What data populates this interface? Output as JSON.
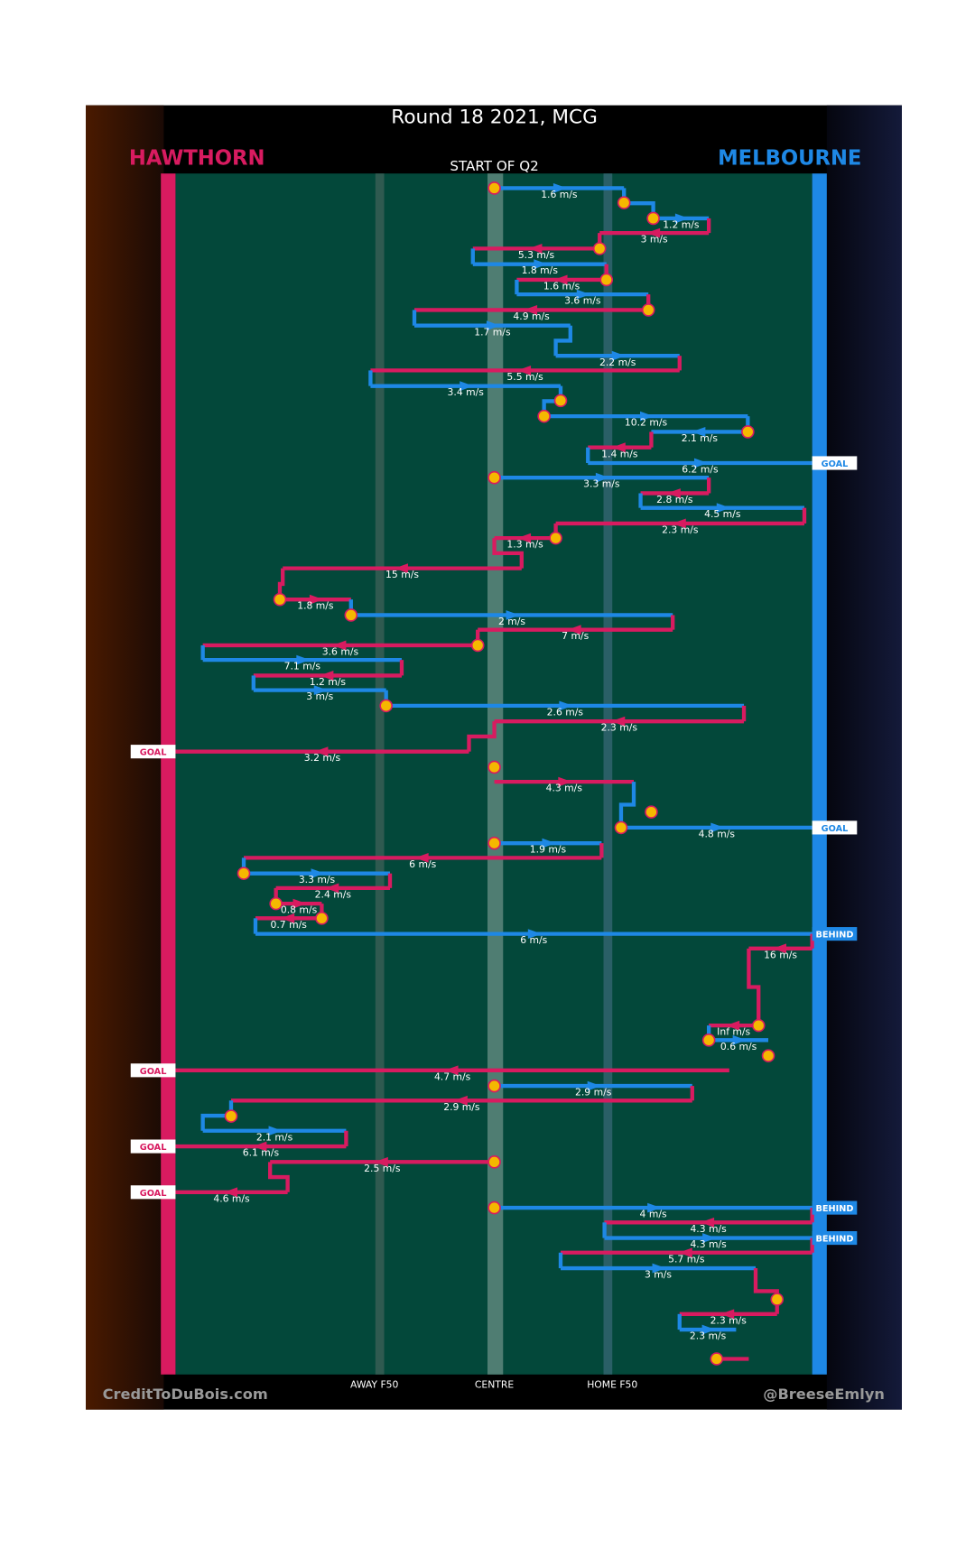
{
  "title": "Round 18 2021, MCG",
  "home_team": "HAWTHORN",
  "away_team": "MELBOURNE",
  "start_label": "START OF Q2",
  "axis_labels": [
    "AWAY F50",
    "CENTRE",
    "HOME F50"
  ],
  "credit_left": "CreditToDuBois.com",
  "credit_right": "@BreeseEmlyn",
  "colors": {
    "red": "#d81b60",
    "blue": "#1e88e5"
  },
  "moves": [
    {
      "speed": "1.6 m/s",
      "color": "blue"
    },
    {
      "speed": "1.2 m/s",
      "color": "blue"
    },
    {
      "speed": "3 m/s",
      "color": "red"
    },
    {
      "speed": "5.3 m/s",
      "color": "red"
    },
    {
      "speed": "1.8 m/s",
      "color": "blue"
    },
    {
      "speed": "1.6 m/s",
      "color": "red"
    },
    {
      "speed": "3.6 m/s",
      "color": "blue"
    },
    {
      "speed": "4.9 m/s",
      "color": "red"
    },
    {
      "speed": "1.7 m/s",
      "color": "blue"
    },
    {
      "speed": "2.2 m/s",
      "color": "blue"
    },
    {
      "speed": "5.5 m/s",
      "color": "red"
    },
    {
      "speed": "3.4 m/s",
      "color": "blue"
    },
    {
      "speed": "10.2 m/s",
      "color": "blue"
    },
    {
      "speed": "2.1 m/s",
      "color": "blue"
    },
    {
      "speed": "1.4 m/s",
      "color": "red"
    },
    {
      "speed": "6.2 m/s",
      "color": "blue"
    },
    {
      "speed": "3.3 m/s",
      "color": "blue"
    },
    {
      "speed": "2.8 m/s",
      "color": "red"
    },
    {
      "speed": "4.5 m/s",
      "color": "blue"
    },
    {
      "speed": "2.3 m/s",
      "color": "red"
    },
    {
      "speed": "1.3 m/s",
      "color": "red"
    },
    {
      "speed": "15 m/s",
      "color": "red"
    },
    {
      "speed": "1.8 m/s",
      "color": "red"
    },
    {
      "speed": "2 m/s",
      "color": "blue"
    },
    {
      "speed": "7 m/s",
      "color": "red"
    },
    {
      "speed": "3.6 m/s",
      "color": "red"
    },
    {
      "speed": "7.1 m/s",
      "color": "blue"
    },
    {
      "speed": "1.2 m/s",
      "color": "red"
    },
    {
      "speed": "3 m/s",
      "color": "blue"
    },
    {
      "speed": "2.6 m/s",
      "color": "blue"
    },
    {
      "speed": "2.3 m/s",
      "color": "red"
    },
    {
      "speed": "3.2 m/s",
      "color": "red"
    },
    {
      "speed": "4.3 m/s",
      "color": "red"
    },
    {
      "speed": "4.8 m/s",
      "color": "blue"
    },
    {
      "speed": "1.9 m/s",
      "color": "blue"
    },
    {
      "speed": "6 m/s",
      "color": "red"
    },
    {
      "speed": "3.3 m/s",
      "color": "blue"
    },
    {
      "speed": "2.4 m/s",
      "color": "red"
    },
    {
      "speed": "0.8 m/s",
      "color": "red"
    },
    {
      "speed": "0.7 m/s",
      "color": "red"
    },
    {
      "speed": "6 m/s",
      "color": "blue"
    },
    {
      "speed": "16 m/s",
      "color": "red"
    },
    {
      "speed": "Inf m/s",
      "color": "red"
    },
    {
      "speed": "0.6 m/s",
      "color": "blue"
    },
    {
      "speed": "4.7 m/s",
      "color": "red"
    },
    {
      "speed": "2.9 m/s",
      "color": "blue"
    },
    {
      "speed": "2.9 m/s",
      "color": "red"
    },
    {
      "speed": "2.1 m/s",
      "color": "blue"
    },
    {
      "speed": "6.1 m/s",
      "color": "red"
    },
    {
      "speed": "2.5 m/s",
      "color": "red"
    },
    {
      "speed": "4.6 m/s",
      "color": "red"
    },
    {
      "speed": "4 m/s",
      "color": "blue"
    },
    {
      "speed": "4.3 m/s",
      "color": "red"
    },
    {
      "speed": "4.3 m/s",
      "color": "blue"
    },
    {
      "speed": "5.7 m/s",
      "color": "red"
    },
    {
      "speed": "3 m/s",
      "color": "blue"
    },
    {
      "speed": "2.3 m/s",
      "color": "red"
    },
    {
      "speed": "2.3 m/s",
      "color": "blue"
    }
  ],
  "outcomes": [
    {
      "label": "GOAL",
      "color": "blue"
    },
    {
      "label": "GOAL",
      "color": "red"
    },
    {
      "label": "GOAL",
      "color": "blue"
    },
    {
      "label": "BEHIND",
      "color": "blue"
    },
    {
      "label": "GOAL",
      "color": "red"
    },
    {
      "label": "GOAL",
      "color": "red"
    },
    {
      "label": "GOAL",
      "color": "red"
    },
    {
      "label": "BEHIND",
      "color": "blue"
    },
    {
      "label": "BEHIND",
      "color": "blue"
    }
  ]
}
